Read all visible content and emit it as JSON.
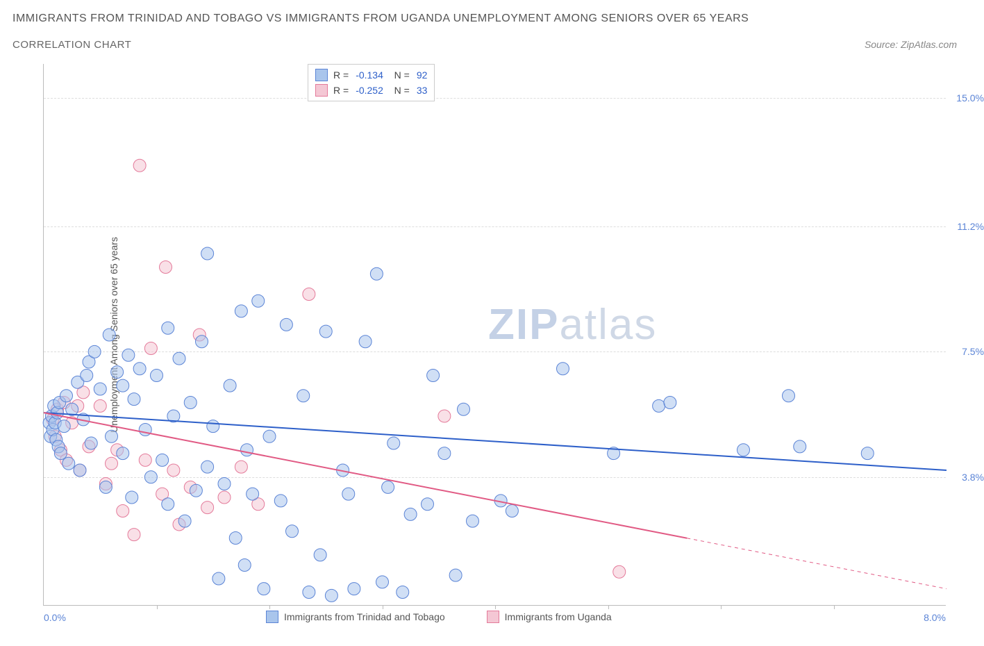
{
  "title": "IMMIGRANTS FROM TRINIDAD AND TOBAGO VS IMMIGRANTS FROM UGANDA UNEMPLOYMENT AMONG SENIORS OVER 65 YEARS",
  "subtitle": "CORRELATION CHART",
  "source": "Source: ZipAtlas.com",
  "watermark": {
    "zip": "ZIP",
    "atlas": "atlas"
  },
  "chart": {
    "type": "scatter",
    "y_axis_label": "Unemployment Among Seniors over 65 years",
    "x_min": 0.0,
    "x_max": 8.0,
    "y_min": 0.0,
    "y_max": 16.0,
    "x_min_label": "0.0%",
    "x_max_label": "8.0%",
    "y_ticks": [
      {
        "value": 3.8,
        "label": "3.8%"
      },
      {
        "value": 7.5,
        "label": "7.5%"
      },
      {
        "value": 11.2,
        "label": "11.2%"
      },
      {
        "value": 15.0,
        "label": "15.0%"
      }
    ],
    "x_tick_positions": [
      1.0,
      2.0,
      3.0,
      4.0,
      5.0,
      6.0,
      7.0
    ],
    "background_color": "#ffffff",
    "grid_color": "#dddddd",
    "axis_color": "#bbbbbb",
    "tick_label_color": "#5b84d6",
    "marker_radius": 9,
    "marker_opacity": 0.55,
    "series": [
      {
        "name": "Immigrants from Trinidad and Tobago",
        "color_fill": "#a9c5ec",
        "color_stroke": "#5b84d6",
        "R": "-0.134",
        "N": "92",
        "trend": {
          "x1": 0.0,
          "y1": 5.7,
          "x2": 8.0,
          "y2": 4.0,
          "solid_to_x": 8.0,
          "stroke": "#2d5fc9",
          "width": 2
        },
        "points": [
          [
            0.05,
            5.4
          ],
          [
            0.06,
            5.0
          ],
          [
            0.07,
            5.6
          ],
          [
            0.08,
            5.2
          ],
          [
            0.09,
            5.9
          ],
          [
            0.1,
            5.4
          ],
          [
            0.11,
            4.9
          ],
          [
            0.12,
            5.7
          ],
          [
            0.13,
            4.7
          ],
          [
            0.14,
            6.0
          ],
          [
            0.15,
            4.5
          ],
          [
            0.18,
            5.3
          ],
          [
            0.2,
            6.2
          ],
          [
            0.22,
            4.2
          ],
          [
            0.25,
            5.8
          ],
          [
            0.3,
            6.6
          ],
          [
            0.32,
            4.0
          ],
          [
            0.35,
            5.5
          ],
          [
            0.38,
            6.8
          ],
          [
            0.4,
            7.2
          ],
          [
            0.42,
            4.8
          ],
          [
            0.45,
            7.5
          ],
          [
            0.5,
            6.4
          ],
          [
            0.55,
            3.5
          ],
          [
            0.58,
            8.0
          ],
          [
            0.6,
            5.0
          ],
          [
            0.65,
            6.9
          ],
          [
            0.7,
            6.5
          ],
          [
            0.7,
            4.5
          ],
          [
            0.75,
            7.4
          ],
          [
            0.78,
            3.2
          ],
          [
            0.8,
            6.1
          ],
          [
            0.85,
            7.0
          ],
          [
            0.9,
            5.2
          ],
          [
            0.95,
            3.8
          ],
          [
            1.0,
            6.8
          ],
          [
            1.05,
            4.3
          ],
          [
            1.1,
            8.2
          ],
          [
            1.1,
            3.0
          ],
          [
            1.15,
            5.6
          ],
          [
            1.2,
            7.3
          ],
          [
            1.25,
            2.5
          ],
          [
            1.3,
            6.0
          ],
          [
            1.35,
            3.4
          ],
          [
            1.4,
            7.8
          ],
          [
            1.45,
            10.4
          ],
          [
            1.45,
            4.1
          ],
          [
            1.5,
            5.3
          ],
          [
            1.55,
            0.8
          ],
          [
            1.6,
            3.6
          ],
          [
            1.65,
            6.5
          ],
          [
            1.7,
            2.0
          ],
          [
            1.75,
            8.7
          ],
          [
            1.78,
            1.2
          ],
          [
            1.8,
            4.6
          ],
          [
            1.85,
            3.3
          ],
          [
            1.9,
            9.0
          ],
          [
            1.95,
            0.5
          ],
          [
            2.0,
            5.0
          ],
          [
            2.1,
            3.1
          ],
          [
            2.15,
            8.3
          ],
          [
            2.2,
            2.2
          ],
          [
            2.3,
            6.2
          ],
          [
            2.35,
            0.4
          ],
          [
            2.45,
            1.5
          ],
          [
            2.5,
            8.1
          ],
          [
            2.55,
            0.3
          ],
          [
            2.65,
            4.0
          ],
          [
            2.7,
            3.3
          ],
          [
            2.75,
            0.5
          ],
          [
            2.85,
            7.8
          ],
          [
            2.95,
            9.8
          ],
          [
            3.0,
            0.7
          ],
          [
            3.05,
            3.5
          ],
          [
            3.1,
            4.8
          ],
          [
            3.18,
            0.4
          ],
          [
            3.25,
            2.7
          ],
          [
            3.4,
            3.0
          ],
          [
            3.45,
            6.8
          ],
          [
            3.55,
            4.5
          ],
          [
            3.65,
            0.9
          ],
          [
            3.72,
            5.8
          ],
          [
            3.8,
            2.5
          ],
          [
            4.05,
            3.1
          ],
          [
            4.15,
            2.8
          ],
          [
            4.6,
            7.0
          ],
          [
            5.05,
            4.5
          ],
          [
            5.45,
            5.9
          ],
          [
            5.55,
            6.0
          ],
          [
            6.2,
            4.6
          ],
          [
            6.6,
            6.2
          ],
          [
            6.7,
            4.7
          ],
          [
            7.3,
            4.5
          ]
        ]
      },
      {
        "name": "Immigrants from Uganda",
        "color_fill": "#f4c7d4",
        "color_stroke": "#e47a9a",
        "R": "-0.252",
        "N": "33",
        "trend": {
          "x1": 0.0,
          "y1": 5.7,
          "x2": 8.0,
          "y2": 0.5,
          "solid_to_x": 5.7,
          "stroke": "#e15a84",
          "width": 2
        },
        "points": [
          [
            0.08,
            5.5
          ],
          [
            0.1,
            5.0
          ],
          [
            0.12,
            5.8
          ],
          [
            0.15,
            4.6
          ],
          [
            0.18,
            6.0
          ],
          [
            0.2,
            4.3
          ],
          [
            0.25,
            5.4
          ],
          [
            0.3,
            5.9
          ],
          [
            0.32,
            4.0
          ],
          [
            0.35,
            6.3
          ],
          [
            0.4,
            4.7
          ],
          [
            0.5,
            5.9
          ],
          [
            0.55,
            3.6
          ],
          [
            0.6,
            4.2
          ],
          [
            0.65,
            4.6
          ],
          [
            0.7,
            2.8
          ],
          [
            0.8,
            2.1
          ],
          [
            0.85,
            13.0
          ],
          [
            0.9,
            4.3
          ],
          [
            0.95,
            7.6
          ],
          [
            1.05,
            3.3
          ],
          [
            1.08,
            10.0
          ],
          [
            1.15,
            4.0
          ],
          [
            1.2,
            2.4
          ],
          [
            1.3,
            3.5
          ],
          [
            1.38,
            8.0
          ],
          [
            1.45,
            2.9
          ],
          [
            1.6,
            3.2
          ],
          [
            1.75,
            4.1
          ],
          [
            1.9,
            3.0
          ],
          [
            2.35,
            9.2
          ],
          [
            3.55,
            5.6
          ],
          [
            5.1,
            1.0
          ]
        ]
      }
    ],
    "bottom_legend": [
      {
        "label": "Immigrants from Trinidad and Tobago",
        "fill": "#a9c5ec",
        "stroke": "#5b84d6"
      },
      {
        "label": "Immigrants from Uganda",
        "fill": "#f4c7d4",
        "stroke": "#e47a9a"
      }
    ]
  }
}
